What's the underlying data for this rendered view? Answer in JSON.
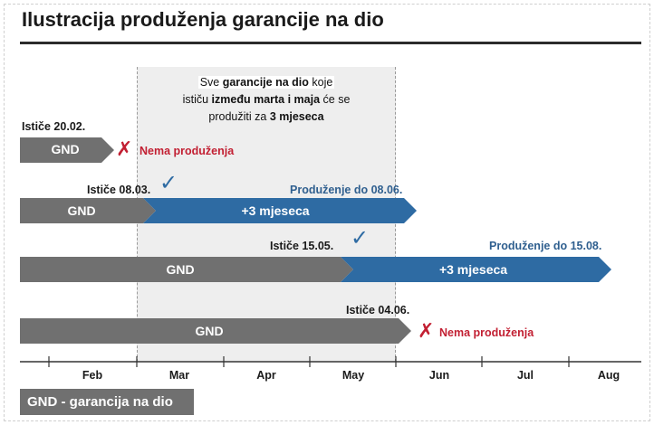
{
  "title": "Ilustracija produženja garancije na dio",
  "window_note": {
    "line1_a": "Sve ",
    "line1_b": "garancije na dio",
    "line1_c": " koje",
    "line2_a": "ističu ",
    "line2_b": "između marta i maja",
    "line2_c": " će se",
    "line3_a": "produžiti za ",
    "line3_b": "3 mjeseca"
  },
  "rows": [
    {
      "expiry_label": "Ističe 20.02.",
      "bar_label": "GND",
      "outcome": "Nema produženja",
      "icon": "cross-icon"
    },
    {
      "expiry_label": "Ističe 08.03.",
      "bar_label": "GND",
      "extension_label": "+3 mjeseca",
      "outcome": "Produženje do 08.06.",
      "icon": "check-icon"
    },
    {
      "expiry_label": "Ističe 15.05.",
      "bar_label": "GND",
      "extension_label": "+3 mjeseca",
      "outcome": "Produženje do 15.08.",
      "icon": "check-icon"
    },
    {
      "expiry_label": "Ističe 04.06.",
      "bar_label": "GND",
      "outcome": "Nema produženja",
      "icon": "cross-icon"
    }
  ],
  "months": [
    "Feb",
    "Mar",
    "Apr",
    "May",
    "Jun",
    "Jul",
    "Aug"
  ],
  "legend": "GND - garancija na dio",
  "colors": {
    "gnd_bar": "#707070",
    "extension_bar": "#2e6ba3",
    "no_extension": "#c21f32",
    "extension_text": "#2f5f8f",
    "window": "#eeeeee"
  }
}
